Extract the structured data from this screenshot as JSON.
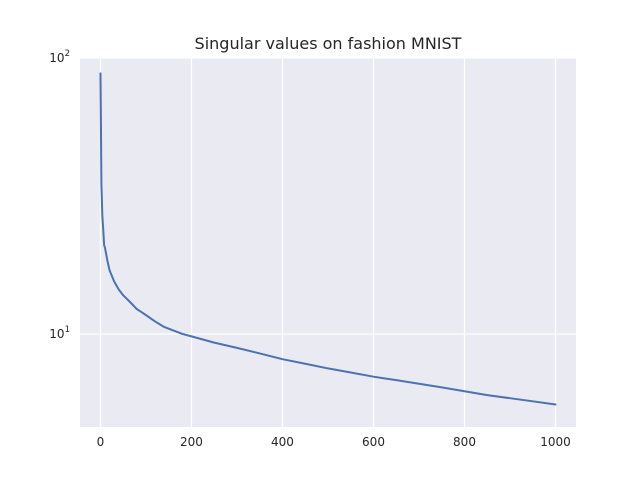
{
  "chart_data": {
    "type": "line",
    "title": "Singular values on fashion MNIST",
    "xlabel": "",
    "ylabel": "",
    "xlim": [
      -45,
      1045
    ],
    "ylim": [
      4.6,
      100
    ],
    "yscale": "log",
    "grid": true,
    "x_ticks": [
      {
        "value": 0,
        "label": "0"
      },
      {
        "value": 200,
        "label": "200"
      },
      {
        "value": 400,
        "label": "400"
      },
      {
        "value": 600,
        "label": "600"
      },
      {
        "value": 800,
        "label": "800"
      },
      {
        "value": 1000,
        "label": "1000"
      }
    ],
    "y_ticks": [
      {
        "value": 10,
        "base": "10",
        "exp": "1"
      },
      {
        "value": 100,
        "base": "10",
        "exp": "2"
      }
    ],
    "series": [
      {
        "color": "#4c72b0",
        "x": [
          0,
          1,
          2,
          3,
          4,
          6,
          8,
          10,
          15,
          20,
          30,
          40,
          50,
          60,
          70,
          80,
          90,
          100,
          120,
          140,
          160,
          180,
          200,
          250,
          300,
          350,
          400,
          450,
          500,
          550,
          600,
          650,
          700,
          750,
          800,
          850,
          900,
          950,
          1000
        ],
        "y": [
          88,
          58,
          35,
          31,
          27,
          24,
          21,
          20.5,
          18.5,
          17,
          15.5,
          14.5,
          13.8,
          13.3,
          12.8,
          12.3,
          12.0,
          11.7,
          11.1,
          10.6,
          10.3,
          10.0,
          9.8,
          9.3,
          8.9,
          8.5,
          8.1,
          7.8,
          7.5,
          7.25,
          7.0,
          6.8,
          6.6,
          6.4,
          6.2,
          6.0,
          5.85,
          5.7,
          5.55
        ]
      }
    ]
  }
}
